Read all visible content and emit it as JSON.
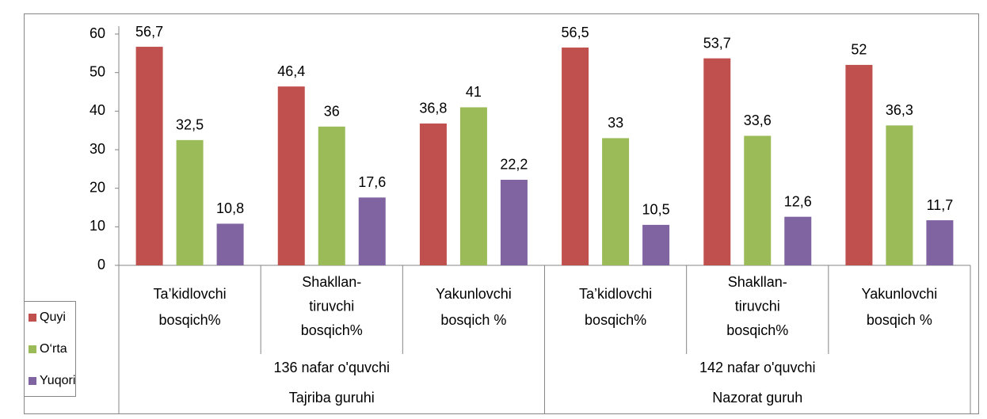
{
  "chart_data": {
    "type": "bar",
    "categories": [
      [
        "Ta’kidlovchi",
        "bosqich%"
      ],
      [
        "Shakllan-",
        "tiruvchi",
        "bosqich%"
      ],
      [
        "Yakunlovchi",
        "bosqich %"
      ],
      [
        "Ta’kidlovchi",
        "bosqich%"
      ],
      [
        "Shakllan-",
        "tiruvchi",
        "bosqich%"
      ],
      [
        "Yakunlovchi",
        "bosqich %"
      ]
    ],
    "groups": [
      {
        "name": "136 nafar o'quvchi",
        "subname": "Tajriba guruhi"
      },
      {
        "name": "142 nafar o'quvchi",
        "subname": "Nazorat guruh"
      }
    ],
    "series": [
      {
        "name": "Quyi",
        "color": "#c0504d",
        "values": [
          56.7,
          46.4,
          36.8,
          56.5,
          53.7,
          52
        ],
        "value_labels": [
          "56,7",
          "46,4",
          "36,8",
          "56,5",
          "53,7",
          "52"
        ]
      },
      {
        "name": "O‘rta",
        "color": "#9bbb59",
        "values": [
          32.5,
          36,
          41,
          33,
          33.6,
          36.3
        ],
        "value_labels": [
          "32,5",
          "36",
          "41",
          "33",
          "33,6",
          "36,3"
        ]
      },
      {
        "name": "Yuqori",
        "color": "#8064a2",
        "values": [
          10.8,
          17.6,
          22.2,
          10.5,
          12.6,
          11.7
        ],
        "value_labels": [
          "10,8",
          "17,6",
          "22,2",
          "10,5",
          "12,6",
          "11,7"
        ]
      }
    ],
    "ylim": [
      0,
      60
    ],
    "yticks": [
      0,
      10,
      20,
      30,
      40,
      50,
      60
    ],
    "grid": false,
    "legend": "bottom-left"
  }
}
